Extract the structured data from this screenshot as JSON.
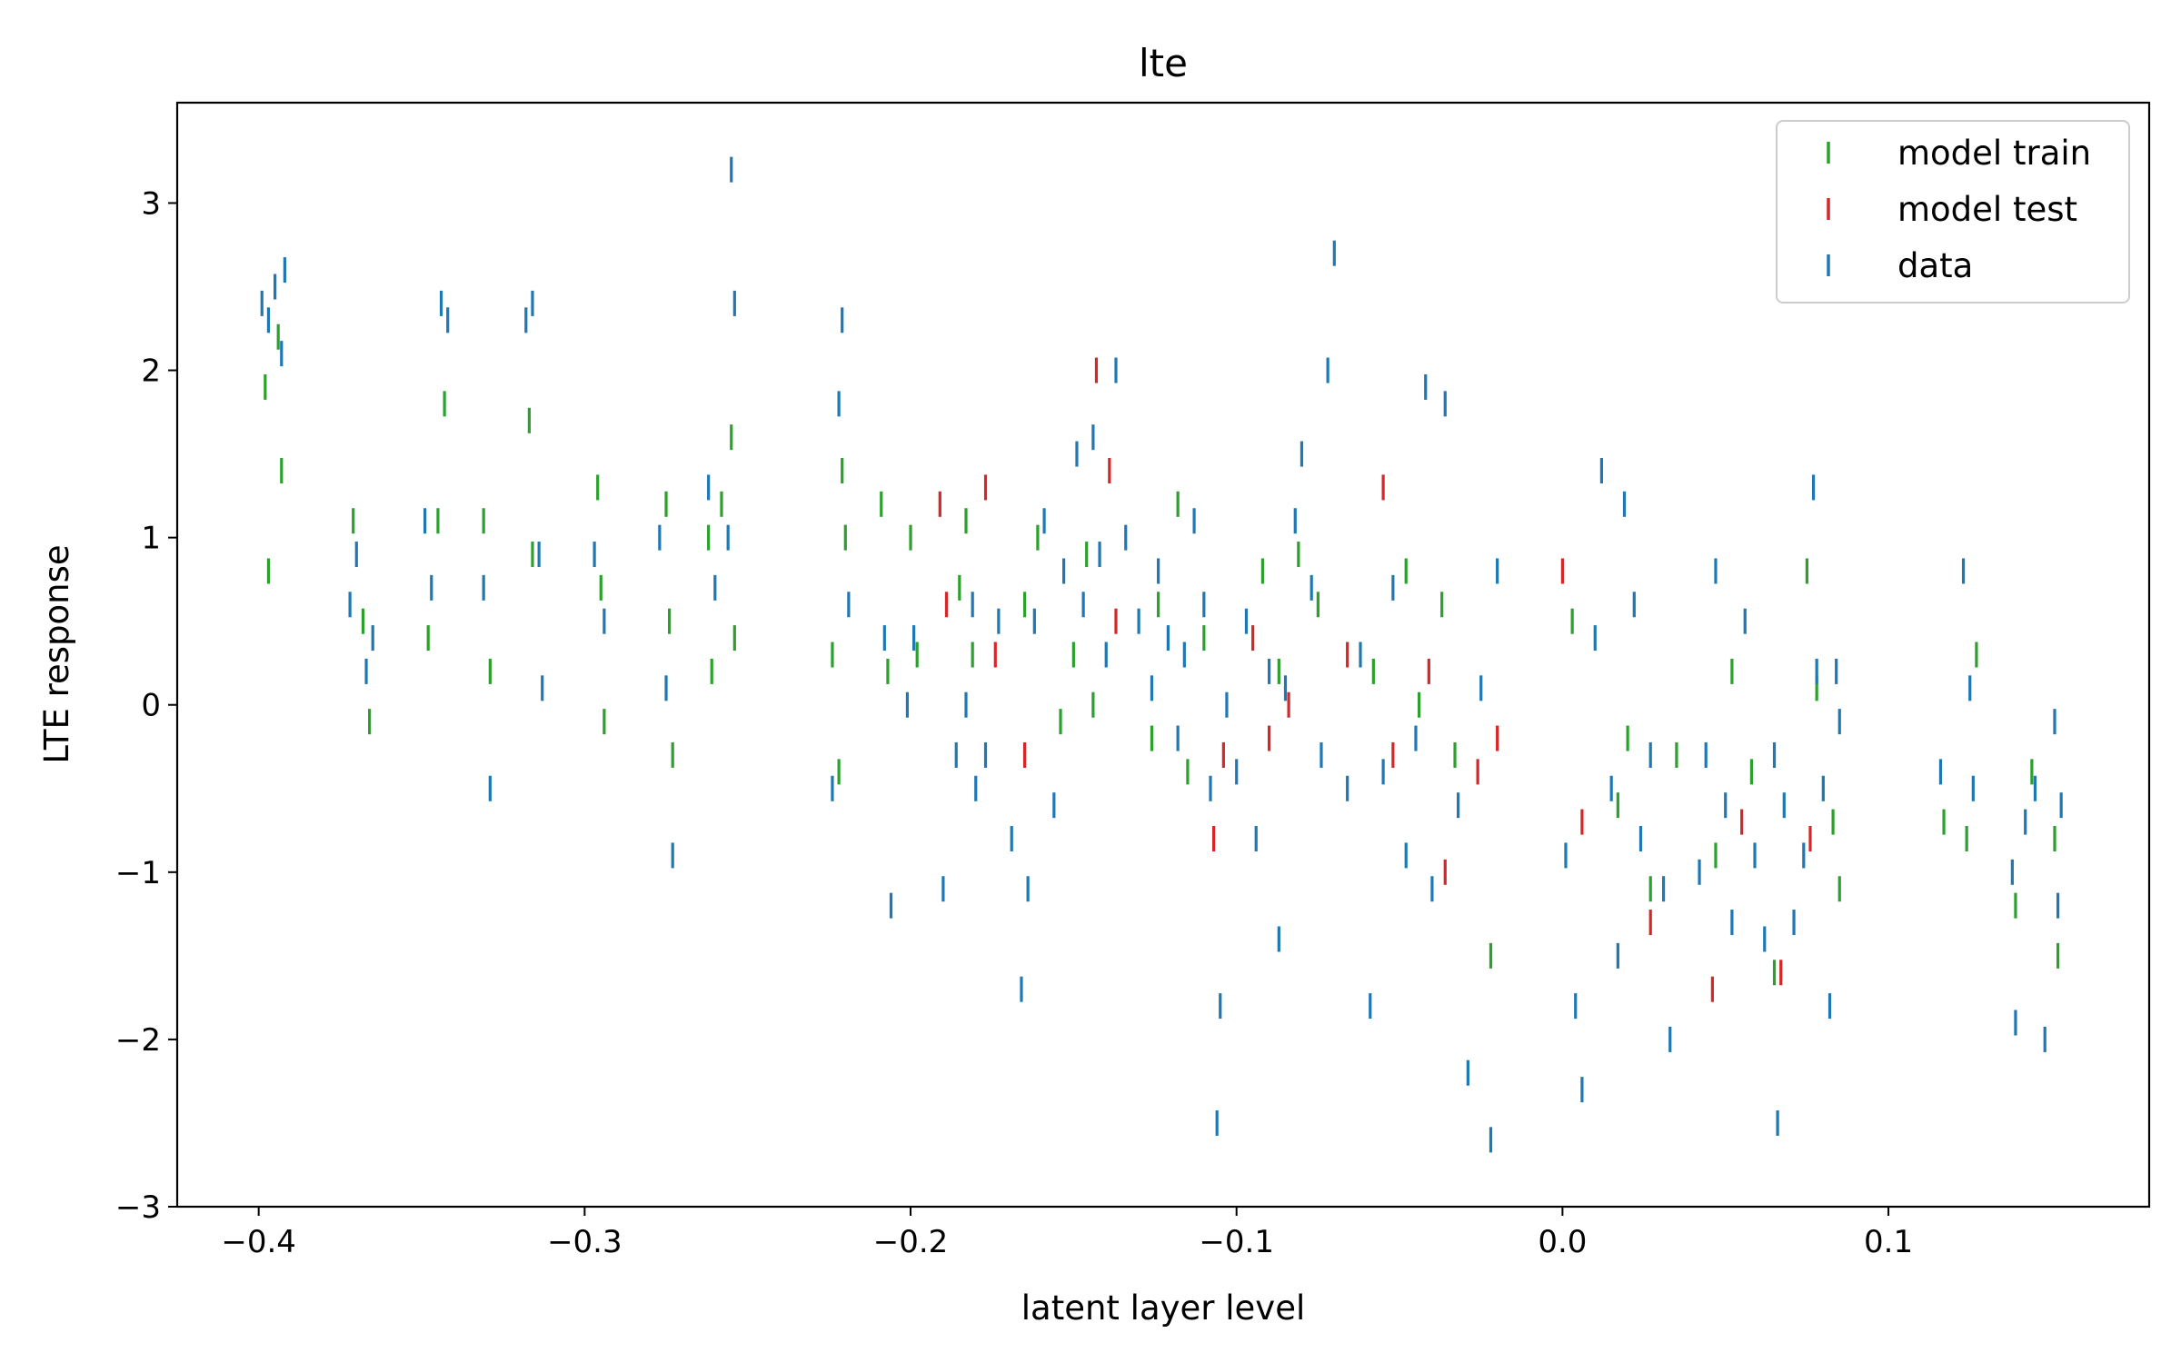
{
  "chart_data": {
    "type": "scatter",
    "title": "lte",
    "xlabel": "latent layer level",
    "ylabel": "LTE response",
    "xlim": [
      -0.425,
      0.18
    ],
    "ylim": [
      -3.0,
      3.6
    ],
    "xticks": [
      -0.4,
      -0.3,
      -0.2,
      -0.1,
      0.0,
      0.1
    ],
    "xtick_labels": [
      "−0.4",
      "−0.3",
      "−0.2",
      "−0.1",
      "0.0",
      "0.1"
    ],
    "yticks": [
      -3,
      -2,
      -1,
      0,
      1,
      2,
      3
    ],
    "ytick_labels": [
      "−3",
      "−2",
      "−1",
      "0",
      "1",
      "2",
      "3"
    ],
    "marker": "vertical dashes",
    "grid": false,
    "legend_position": "top-right",
    "series": [
      {
        "name": "model train",
        "color": "#2ca02c",
        "points": [
          [
            -0.398,
            1.9
          ],
          [
            -0.397,
            0.8
          ],
          [
            -0.394,
            2.2
          ],
          [
            -0.393,
            1.4
          ],
          [
            -0.371,
            1.1
          ],
          [
            -0.368,
            0.5
          ],
          [
            -0.366,
            -0.1
          ],
          [
            -0.348,
            0.4
          ],
          [
            -0.345,
            1.1
          ],
          [
            -0.343,
            1.8
          ],
          [
            -0.331,
            1.1
          ],
          [
            -0.329,
            0.2
          ],
          [
            -0.317,
            1.7
          ],
          [
            -0.316,
            0.9
          ],
          [
            -0.296,
            1.3
          ],
          [
            -0.295,
            0.7
          ],
          [
            -0.294,
            -0.1
          ],
          [
            -0.275,
            1.2
          ],
          [
            -0.274,
            0.5
          ],
          [
            -0.273,
            -0.3
          ],
          [
            -0.262,
            1.0
          ],
          [
            -0.261,
            0.2
          ],
          [
            -0.258,
            1.2
          ],
          [
            -0.255,
            1.6
          ],
          [
            -0.254,
            0.4
          ],
          [
            -0.224,
            0.3
          ],
          [
            -0.222,
            -0.4
          ],
          [
            -0.221,
            1.4
          ],
          [
            -0.22,
            1.0
          ],
          [
            -0.209,
            1.2
          ],
          [
            -0.207,
            0.2
          ],
          [
            -0.2,
            1.0
          ],
          [
            -0.198,
            0.3
          ],
          [
            -0.185,
            0.7
          ],
          [
            -0.183,
            1.1
          ],
          [
            -0.181,
            0.3
          ],
          [
            -0.165,
            0.6
          ],
          [
            -0.161,
            1.0
          ],
          [
            -0.154,
            -0.1
          ],
          [
            -0.15,
            0.3
          ],
          [
            -0.146,
            0.9
          ],
          [
            -0.144,
            0.0
          ],
          [
            -0.126,
            -0.2
          ],
          [
            -0.124,
            0.6
          ],
          [
            -0.118,
            1.2
          ],
          [
            -0.115,
            -0.4
          ],
          [
            -0.11,
            0.4
          ],
          [
            -0.092,
            0.8
          ],
          [
            -0.087,
            0.2
          ],
          [
            -0.081,
            0.9
          ],
          [
            -0.075,
            0.6
          ],
          [
            -0.058,
            0.2
          ],
          [
            -0.048,
            0.8
          ],
          [
            -0.044,
            0.0
          ],
          [
            -0.037,
            0.6
          ],
          [
            -0.033,
            -0.3
          ],
          [
            -0.022,
            -1.5
          ],
          [
            0.003,
            0.5
          ],
          [
            0.017,
            -0.6
          ],
          [
            0.02,
            -0.2
          ],
          [
            0.027,
            -1.1
          ],
          [
            0.035,
            -0.3
          ],
          [
            0.047,
            -0.9
          ],
          [
            0.052,
            0.2
          ],
          [
            0.058,
            -0.4
          ],
          [
            0.065,
            -1.6
          ],
          [
            0.075,
            0.8
          ],
          [
            0.078,
            0.1
          ],
          [
            0.083,
            -0.7
          ],
          [
            0.085,
            -1.1
          ],
          [
            0.117,
            -0.7
          ],
          [
            0.124,
            -0.8
          ],
          [
            0.127,
            0.3
          ],
          [
            0.139,
            -1.2
          ],
          [
            0.144,
            -0.4
          ],
          [
            0.151,
            -0.8
          ],
          [
            0.152,
            -1.5
          ]
        ]
      },
      {
        "name": "model test",
        "color": "#d62728",
        "points": [
          [
            -0.191,
            1.2
          ],
          [
            -0.189,
            0.6
          ],
          [
            -0.177,
            1.3
          ],
          [
            -0.174,
            0.3
          ],
          [
            -0.165,
            -0.3
          ],
          [
            -0.143,
            2.0
          ],
          [
            -0.139,
            1.4
          ],
          [
            -0.137,
            0.5
          ],
          [
            -0.107,
            -0.8
          ],
          [
            -0.104,
            -0.3
          ],
          [
            -0.095,
            0.4
          ],
          [
            -0.09,
            -0.2
          ],
          [
            -0.084,
            0.0
          ],
          [
            -0.066,
            0.3
          ],
          [
            -0.055,
            1.3
          ],
          [
            -0.052,
            -0.3
          ],
          [
            -0.041,
            0.2
          ],
          [
            -0.036,
            -1.0
          ],
          [
            -0.026,
            -0.4
          ],
          [
            -0.02,
            -0.2
          ],
          [
            0.0,
            0.8
          ],
          [
            0.006,
            -0.7
          ],
          [
            0.027,
            -1.3
          ],
          [
            0.046,
            -1.7
          ],
          [
            0.055,
            -0.7
          ],
          [
            0.067,
            -1.6
          ],
          [
            0.076,
            -0.8
          ]
        ]
      },
      {
        "name": "data",
        "color": "#1f77b4",
        "points": [
          [
            -0.399,
            2.4
          ],
          [
            -0.397,
            2.3
          ],
          [
            -0.395,
            2.5
          ],
          [
            -0.393,
            2.1
          ],
          [
            -0.392,
            2.6
          ],
          [
            -0.372,
            0.6
          ],
          [
            -0.37,
            0.9
          ],
          [
            -0.367,
            0.2
          ],
          [
            -0.365,
            0.4
          ],
          [
            -0.349,
            1.1
          ],
          [
            -0.347,
            0.7
          ],
          [
            -0.344,
            2.4
          ],
          [
            -0.342,
            2.3
          ],
          [
            -0.331,
            0.7
          ],
          [
            -0.329,
            -0.5
          ],
          [
            -0.318,
            2.3
          ],
          [
            -0.316,
            2.4
          ],
          [
            -0.314,
            0.9
          ],
          [
            -0.313,
            0.1
          ],
          [
            -0.297,
            0.9
          ],
          [
            -0.294,
            0.5
          ],
          [
            -0.277,
            1.0
          ],
          [
            -0.275,
            0.1
          ],
          [
            -0.273,
            -0.9
          ],
          [
            -0.262,
            1.3
          ],
          [
            -0.26,
            0.7
          ],
          [
            -0.256,
            1.0
          ],
          [
            -0.255,
            3.2
          ],
          [
            -0.254,
            2.4
          ],
          [
            -0.224,
            -0.5
          ],
          [
            -0.222,
            1.8
          ],
          [
            -0.221,
            2.3
          ],
          [
            -0.219,
            0.6
          ],
          [
            -0.208,
            0.4
          ],
          [
            -0.206,
            -1.2
          ],
          [
            -0.201,
            0.0
          ],
          [
            -0.199,
            0.4
          ],
          [
            -0.19,
            -1.1
          ],
          [
            -0.186,
            -0.3
          ],
          [
            -0.183,
            0.0
          ],
          [
            -0.181,
            0.6
          ],
          [
            -0.18,
            -0.5
          ],
          [
            -0.177,
            -0.3
          ],
          [
            -0.173,
            0.5
          ],
          [
            -0.169,
            -0.8
          ],
          [
            -0.166,
            -1.7
          ],
          [
            -0.164,
            -1.1
          ],
          [
            -0.162,
            0.5
          ],
          [
            -0.159,
            1.1
          ],
          [
            -0.156,
            -0.6
          ],
          [
            -0.153,
            0.8
          ],
          [
            -0.149,
            1.5
          ],
          [
            -0.147,
            0.6
          ],
          [
            -0.144,
            1.6
          ],
          [
            -0.142,
            0.9
          ],
          [
            -0.14,
            0.3
          ],
          [
            -0.137,
            2.0
          ],
          [
            -0.134,
            1.0
          ],
          [
            -0.13,
            0.5
          ],
          [
            -0.126,
            0.1
          ],
          [
            -0.124,
            0.8
          ],
          [
            -0.121,
            0.4
          ],
          [
            -0.118,
            -0.2
          ],
          [
            -0.116,
            0.3
          ],
          [
            -0.113,
            1.1
          ],
          [
            -0.11,
            0.6
          ],
          [
            -0.108,
            -0.5
          ],
          [
            -0.106,
            -2.5
          ],
          [
            -0.105,
            -1.8
          ],
          [
            -0.103,
            0.0
          ],
          [
            -0.1,
            -0.4
          ],
          [
            -0.097,
            0.5
          ],
          [
            -0.094,
            -0.8
          ],
          [
            -0.09,
            0.2
          ],
          [
            -0.087,
            -1.4
          ],
          [
            -0.085,
            0.1
          ],
          [
            -0.082,
            1.1
          ],
          [
            -0.08,
            1.5
          ],
          [
            -0.077,
            0.7
          ],
          [
            -0.074,
            -0.3
          ],
          [
            -0.072,
            2.0
          ],
          [
            -0.07,
            2.7
          ],
          [
            -0.066,
            -0.5
          ],
          [
            -0.062,
            0.3
          ],
          [
            -0.059,
            -1.8
          ],
          [
            -0.055,
            -0.4
          ],
          [
            -0.052,
            0.7
          ],
          [
            -0.048,
            -0.9
          ],
          [
            -0.045,
            -0.2
          ],
          [
            -0.042,
            1.9
          ],
          [
            -0.04,
            -1.1
          ],
          [
            -0.036,
            1.8
          ],
          [
            -0.032,
            -0.6
          ],
          [
            -0.029,
            -2.2
          ],
          [
            -0.025,
            0.1
          ],
          [
            -0.022,
            -2.6
          ],
          [
            -0.02,
            0.8
          ],
          [
            0.001,
            -0.9
          ],
          [
            0.004,
            -1.8
          ],
          [
            0.006,
            -2.3
          ],
          [
            0.01,
            0.4
          ],
          [
            0.012,
            1.4
          ],
          [
            0.015,
            -0.5
          ],
          [
            0.017,
            -1.5
          ],
          [
            0.019,
            1.2
          ],
          [
            0.022,
            0.6
          ],
          [
            0.024,
            -0.8
          ],
          [
            0.027,
            -0.3
          ],
          [
            0.031,
            -1.1
          ],
          [
            0.033,
            -2.0
          ],
          [
            0.042,
            -1.0
          ],
          [
            0.044,
            -0.3
          ],
          [
            0.047,
            0.8
          ],
          [
            0.05,
            -0.6
          ],
          [
            0.052,
            -1.3
          ],
          [
            0.056,
            0.5
          ],
          [
            0.059,
            -0.9
          ],
          [
            0.062,
            -1.4
          ],
          [
            0.065,
            -0.3
          ],
          [
            0.066,
            -2.5
          ],
          [
            0.068,
            -0.6
          ],
          [
            0.071,
            -1.3
          ],
          [
            0.074,
            -0.9
          ],
          [
            0.077,
            1.3
          ],
          [
            0.078,
            0.2
          ],
          [
            0.08,
            -0.5
          ],
          [
            0.082,
            -1.8
          ],
          [
            0.084,
            0.2
          ],
          [
            0.085,
            -0.1
          ],
          [
            0.116,
            -0.4
          ],
          [
            0.123,
            0.8
          ],
          [
            0.125,
            0.1
          ],
          [
            0.126,
            -0.5
          ],
          [
            0.138,
            -1.0
          ],
          [
            0.139,
            -1.9
          ],
          [
            0.142,
            -0.7
          ],
          [
            0.145,
            -0.5
          ],
          [
            0.148,
            -2.0
          ],
          [
            0.151,
            -0.1
          ],
          [
            0.152,
            -1.2
          ],
          [
            0.153,
            -0.6
          ]
        ]
      }
    ]
  }
}
